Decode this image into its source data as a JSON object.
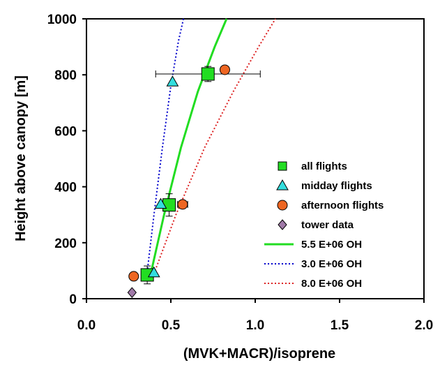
{
  "chart_data": {
    "type": "scatter",
    "xlabel": "(MVK+MACR)/isoprene",
    "ylabel": "Height above canopy [m]",
    "xlim": [
      0.0,
      2.0
    ],
    "ylim": [
      0,
      1000
    ],
    "x_ticks": [
      "0.0",
      "0.5",
      "1.0",
      "1.5",
      "2.0"
    ],
    "y_ticks": [
      "0",
      "200",
      "400",
      "600",
      "800",
      "1000"
    ],
    "grid": false,
    "legend_position": "right",
    "series": [
      {
        "name": "all flights",
        "kind": "points",
        "marker": "square",
        "color": "#22dd22",
        "points": [
          {
            "x": 0.36,
            "y": 85,
            "yerr": 32
          },
          {
            "x": 0.49,
            "y": 335,
            "yerr": 40
          },
          {
            "x": 0.72,
            "y": 803,
            "xerr": 0.31,
            "yerr": 27
          }
        ]
      },
      {
        "name": "midday flights",
        "kind": "points",
        "marker": "triangle",
        "color": "#33dddd",
        "points": [
          {
            "x": 0.4,
            "y": 93
          },
          {
            "x": 0.44,
            "y": 338
          },
          {
            "x": 0.51,
            "y": 775
          }
        ]
      },
      {
        "name": "afternoon flights",
        "kind": "points",
        "marker": "circle",
        "color": "#ee6622",
        "points": [
          {
            "x": 0.28,
            "y": 80
          },
          {
            "x": 0.57,
            "y": 337,
            "xerr": 0.03
          },
          {
            "x": 0.82,
            "y": 818
          }
        ]
      },
      {
        "name": "tower data",
        "kind": "points",
        "marker": "diamond",
        "color": "#a07aa8",
        "points": [
          {
            "x": 0.27,
            "y": 22
          }
        ]
      },
      {
        "name": "5.5 E+06 OH",
        "kind": "line",
        "style": "solid",
        "color": "#22dd22",
        "x": [
          0.372,
          0.46,
          0.56,
          0.66,
          0.76,
          0.83
        ],
        "y": [
          65,
          300,
          540,
          740,
          900,
          1000
        ]
      },
      {
        "name": "3.0 E+06 OH",
        "kind": "line",
        "style": "dotted",
        "color": "#0000cc",
        "x": [
          0.355,
          0.4,
          0.45,
          0.5,
          0.545,
          0.575
        ],
        "y": [
          70,
          300,
          540,
          760,
          920,
          1000
        ]
      },
      {
        "name": "8.0 E+06 OH",
        "kind": "line",
        "style": "dotted",
        "color": "#dd2222",
        "x": [
          0.385,
          0.53,
          0.7,
          0.87,
          1.02,
          1.12
        ],
        "y": [
          65,
          300,
          540,
          740,
          900,
          1000
        ]
      }
    ]
  }
}
